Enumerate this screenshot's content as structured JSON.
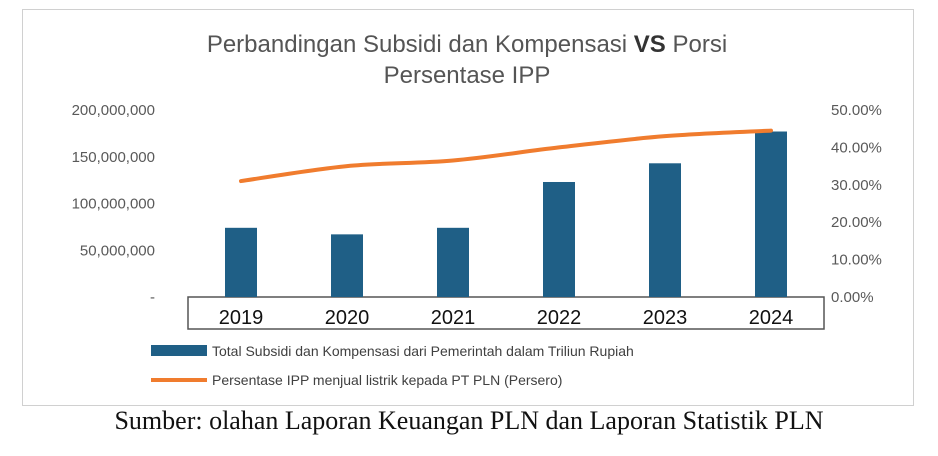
{
  "chart_data": {
    "type": "bar",
    "title_parts": [
      "Perbandingan Subsidi dan Kompensasi ",
      "VS",
      " Porsi"
    ],
    "title_line2": "Persentase IPP",
    "categories": [
      "2019",
      "2020",
      "2021",
      "2022",
      "2023",
      "2024"
    ],
    "series": [
      {
        "name": "Total Subsidi dan Kompensasi dari Pemerintah dalam Triliun Rupiah",
        "type": "bar",
        "axis": "left",
        "color": "#1f5f86",
        "values": [
          74000000,
          67000000,
          74000000,
          123000000,
          143000000,
          177000000
        ]
      },
      {
        "name": "Persentase IPP menjual listrik  kepada PT PLN (Persero)",
        "type": "line",
        "axis": "right",
        "color": "#f07c2e",
        "values": [
          0.31,
          0.35,
          0.365,
          0.4,
          0.43,
          0.445
        ]
      }
    ],
    "y_left": {
      "ticks": [
        0,
        50000000,
        100000000,
        150000000,
        200000000
      ],
      "tick_labels": [
        "-",
        "50,000,000",
        "100,000,000",
        "150,000,000",
        "200,000,000"
      ],
      "ylim": [
        0,
        200000000
      ]
    },
    "y_right": {
      "ticks": [
        0,
        0.1,
        0.2,
        0.3,
        0.4,
        0.5
      ],
      "tick_labels": [
        "0.00%",
        "10.00%",
        "20.00%",
        "30.00%",
        "40.00%",
        "50.00%"
      ],
      "ylim": [
        0,
        0.5
      ]
    },
    "grid": false,
    "legend_position": "bottom"
  },
  "source_note": "Sumber: olahan Laporan Keuangan PLN dan Laporan Statistik PLN"
}
